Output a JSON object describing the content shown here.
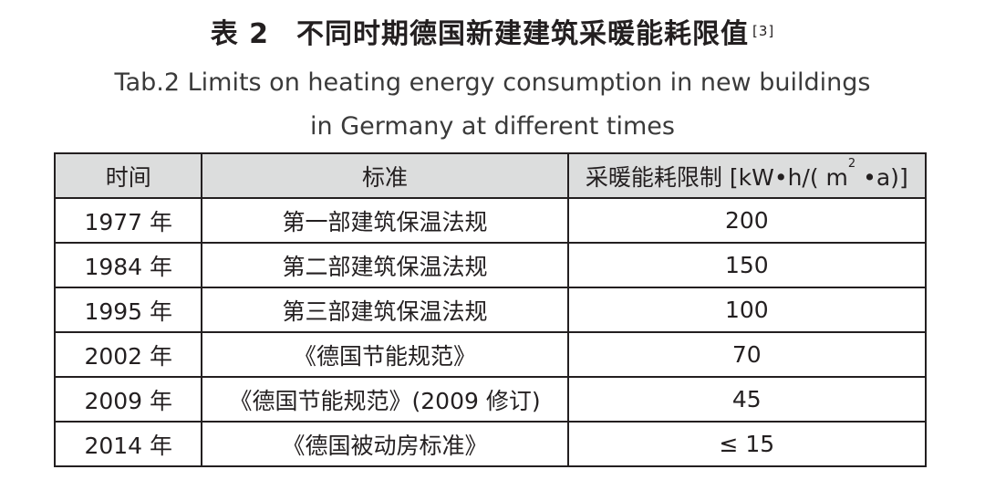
{
  "caption": {
    "label": "表 2",
    "title": "不同时期德国新建建筑采暖能耗限值",
    "ref": "[3]",
    "en_line1": "Tab.2 Limits on heating energy consumption in new buildings",
    "en_line2": "in Germany at different times"
  },
  "table": {
    "headers": {
      "time": "时间",
      "standard": "标准",
      "limit_prefix": "采暖能耗限制 [kW•h/( m",
      "limit_sup": "2",
      "limit_suffix": " •a)]"
    },
    "rows": [
      {
        "year": "1977 年",
        "standard": "第一部建筑保温法规",
        "limit": "200"
      },
      {
        "year": "1984 年",
        "standard": "第二部建筑保温法规",
        "limit": "150"
      },
      {
        "year": "1995 年",
        "standard": "第三部建筑保温法规",
        "limit": "100"
      },
      {
        "year": "2002 年",
        "standard": "《德国节能规范》",
        "limit": "70"
      },
      {
        "year": "2009 年",
        "standard": "《德国节能规范》(2009 修订)",
        "limit": "45"
      },
      {
        "year": "2014 年",
        "standard": "《德国被动房标准》",
        "limit": "≤ 15"
      }
    ]
  }
}
